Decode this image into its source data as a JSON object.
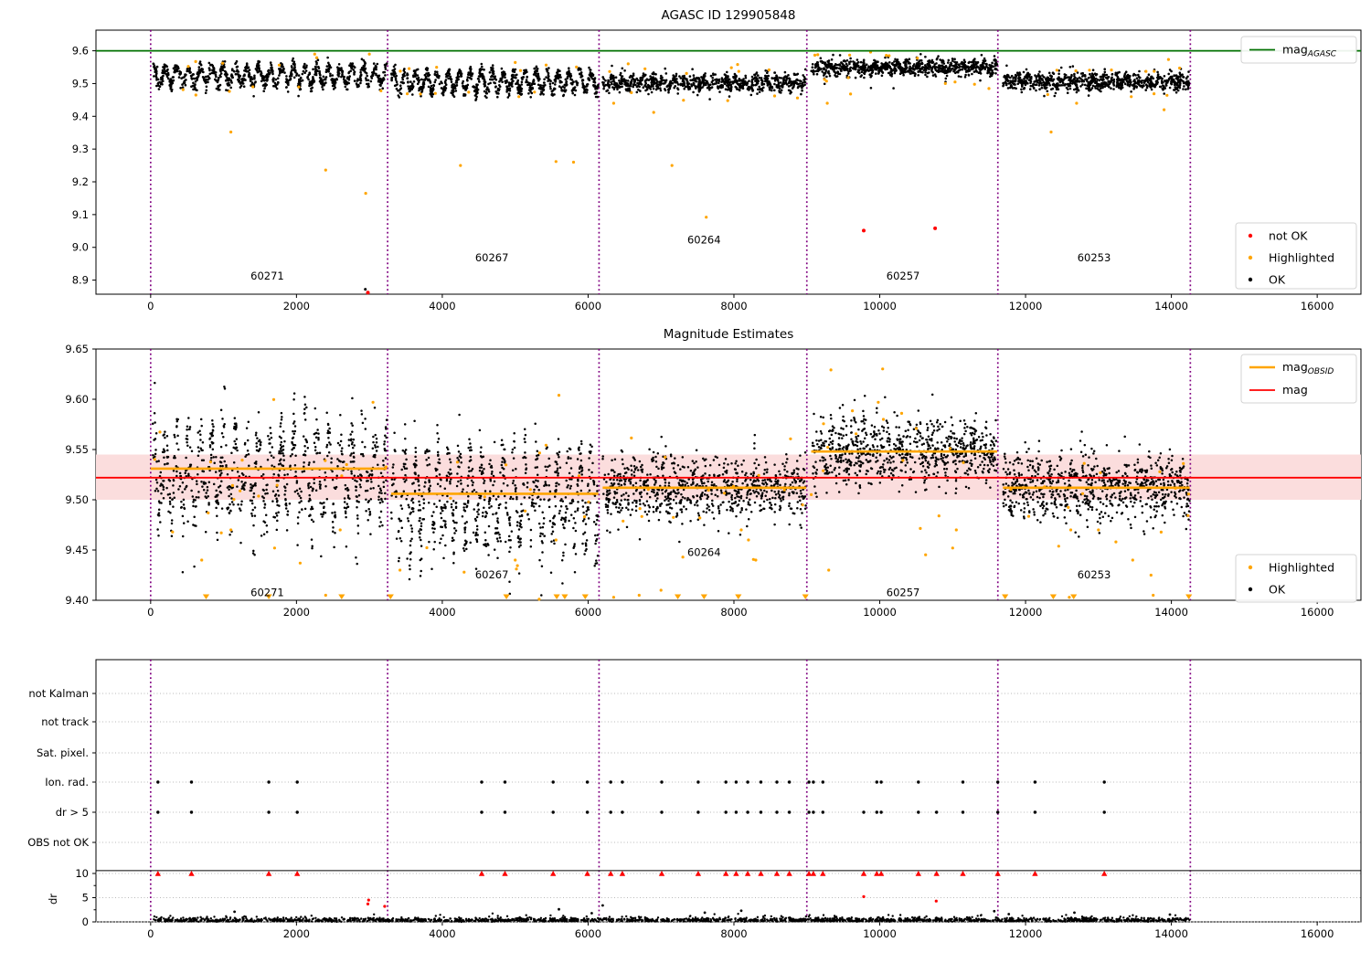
{
  "figure_title": "AGASC ID 129905848",
  "colors": {
    "ok": "#000000",
    "highlighted": "#ffa500",
    "not_ok": "#ff0000",
    "mag_agasc_line": "#007000",
    "mag_line": "#ff0000",
    "mag_band": "#fbdddd",
    "obsid_line": "#ffa500",
    "divider": "#800080",
    "grid": "#b8b8b8",
    "legend_border": "#d3d3d3"
  },
  "chart_data": [
    {
      "id": "panel1",
      "type": "scatter",
      "title": "AGASC ID 129905848",
      "xlim": [
        -750,
        16600
      ],
      "ylim": [
        8.857,
        9.663
      ],
      "xticks": [
        0,
        2000,
        4000,
        6000,
        8000,
        10000,
        12000,
        14000,
        16000
      ],
      "yticks": [
        8.9,
        9.0,
        9.1,
        9.2,
        9.3,
        9.4,
        9.5,
        9.6
      ],
      "ytick_labels": [
        "8.9",
        "9.0",
        "9.1",
        "9.2",
        "9.3",
        "9.4",
        "9.5",
        "9.6"
      ],
      "agasc_mag": 9.6,
      "dividers": [
        0,
        3250,
        6150,
        9000,
        11620,
        14260
      ],
      "legend_line": {
        "main": "mag",
        "sub": "AGASC"
      },
      "legend_markers": [
        {
          "label": "not OK",
          "color": "#ff0000"
        },
        {
          "label": "Highlighted",
          "color": "#ffa500"
        },
        {
          "label": "OK",
          "color": "#000000"
        }
      ],
      "obs_labels": [
        {
          "id": "60271",
          "x": 1600,
          "y": 8.902
        },
        {
          "id": "60267",
          "x": 4680,
          "y": 8.958
        },
        {
          "id": "60264",
          "x": 7590,
          "y": 9.012
        },
        {
          "id": "60257",
          "x": 10320,
          "y": 8.902
        },
        {
          "id": "60253",
          "x": 12940,
          "y": 8.958
        }
      ],
      "segments": [
        {
          "obsid": "60271",
          "x0": 30,
          "x1": 3240,
          "mean": 9.524,
          "amp": 0.026,
          "period": 160,
          "spread": 0.011,
          "n": 900
        },
        {
          "obsid": "60267",
          "x0": 3300,
          "x1": 6140,
          "mean": 9.506,
          "amp": 0.028,
          "period": 150,
          "spread": 0.011,
          "n": 850
        },
        {
          "obsid": "60264",
          "x0": 6200,
          "x1": 8990,
          "mean": 9.502,
          "amp": 0.01,
          "period": 140,
          "spread": 0.012,
          "n": 820
        },
        {
          "obsid": "60257",
          "x0": 9060,
          "x1": 11610,
          "mean": 9.549,
          "amp": 0.007,
          "period": 150,
          "spread": 0.012,
          "n": 800
        },
        {
          "obsid": "60253",
          "x0": 11690,
          "x1": 14250,
          "mean": 9.506,
          "amp": 0.007,
          "period": 150,
          "spread": 0.013,
          "n": 800
        }
      ],
      "orange_in_band_per_segment": 11,
      "orange_outliers": [
        [
          1100,
          9.352
        ],
        [
          2250,
          9.59
        ],
        [
          2400,
          9.236
        ],
        [
          2950,
          9.165
        ],
        [
          3000,
          9.59
        ],
        [
          3700,
          9.468
        ],
        [
          4250,
          9.25
        ],
        [
          5050,
          9.46
        ],
        [
          5560,
          9.262
        ],
        [
          5800,
          9.26
        ],
        [
          6350,
          9.44
        ],
        [
          6550,
          9.56
        ],
        [
          6900,
          9.412
        ],
        [
          7150,
          9.25
        ],
        [
          7620,
          9.092
        ],
        [
          8050,
          9.558
        ],
        [
          9150,
          9.588
        ],
        [
          9280,
          9.44
        ],
        [
          9600,
          9.468
        ],
        [
          10900,
          9.5
        ],
        [
          11300,
          9.498
        ],
        [
          12350,
          9.352
        ],
        [
          12700,
          9.44
        ],
        [
          13450,
          9.46
        ],
        [
          13900,
          9.42
        ]
      ],
      "red_points": [
        [
          9780,
          9.051
        ],
        [
          10760,
          9.058
        ],
        [
          2980,
          8.862
        ]
      ],
      "black_outliers": [
        [
          2944,
          8.872
        ]
      ]
    },
    {
      "id": "panel2",
      "type": "scatter",
      "title": "Magnitude Estimates",
      "xlim": [
        -750,
        16600
      ],
      "ylim": [
        9.4,
        9.65
      ],
      "xticks": [
        0,
        2000,
        4000,
        6000,
        8000,
        10000,
        12000,
        14000,
        16000
      ],
      "yticks": [
        9.4,
        9.45,
        9.5,
        9.55,
        9.6,
        9.65
      ],
      "ytick_labels": [
        "9.40",
        "9.45",
        "9.50",
        "9.55",
        "9.60",
        "9.65"
      ],
      "mag": 9.522,
      "mag_band": [
        9.5,
        9.545
      ],
      "dividers": [
        0,
        3250,
        6150,
        9000,
        11620,
        14260
      ],
      "legend_lines": [
        {
          "main": "mag",
          "sub": "OBSID",
          "color": "#ffa500"
        },
        {
          "main": "mag",
          "sub": "",
          "color": "#ff0000"
        }
      ],
      "legend_markers": [
        {
          "label": "Highlighted",
          "color": "#ffa500"
        },
        {
          "label": "OK",
          "color": "#000000"
        }
      ],
      "obs_labels": [
        {
          "id": "60271",
          "x": 1600,
          "y": 9.404
        },
        {
          "id": "60267",
          "x": 4680,
          "y": 9.422
        },
        {
          "id": "60264",
          "x": 7590,
          "y": 9.444
        },
        {
          "id": "60257",
          "x": 10320,
          "y": 9.404
        },
        {
          "id": "60253",
          "x": 12940,
          "y": 9.422
        }
      ],
      "obsid_lines": [
        {
          "x0": 0,
          "x1": 3240,
          "y": 9.531
        },
        {
          "x0": 3300,
          "x1": 6140,
          "y": 9.506
        },
        {
          "x0": 6200,
          "x1": 8990,
          "y": 9.512
        },
        {
          "x0": 9060,
          "x1": 11610,
          "y": 9.548
        },
        {
          "x0": 11690,
          "x1": 14250,
          "y": 9.512
        }
      ],
      "segments": [
        {
          "obsid": "60271",
          "x0": 30,
          "x1": 3240,
          "mean": 9.531,
          "amp": 0.034,
          "period": 160,
          "spread": 0.016,
          "tail": 0.022,
          "n": 900
        },
        {
          "obsid": "60267",
          "x0": 3300,
          "x1": 6140,
          "mean": 9.506,
          "amp": 0.036,
          "period": 150,
          "spread": 0.016,
          "tail": 0.022,
          "n": 850
        },
        {
          "obsid": "60264",
          "x0": 6200,
          "x1": 8990,
          "mean": 9.512,
          "amp": 0.008,
          "period": 140,
          "spread": 0.015,
          "tail": 0.0,
          "n": 820
        },
        {
          "obsid": "60257",
          "x0": 9060,
          "x1": 11610,
          "mean": 9.548,
          "amp": 0.009,
          "period": 150,
          "spread": 0.016,
          "tail": 0.0,
          "n": 800
        },
        {
          "obsid": "60253",
          "x0": 11690,
          "x1": 14250,
          "mean": 9.512,
          "amp": 0.008,
          "period": 150,
          "spread": 0.016,
          "tail": 0.0,
          "n": 800
        }
      ],
      "orange_in_band_per_segment": 16,
      "orange_outliers": [
        [
          300,
          9.468
        ],
        [
          700,
          9.44
        ],
        [
          1100,
          9.47
        ],
        [
          1700,
          9.452
        ],
        [
          2050,
          9.437
        ],
        [
          2400,
          9.405
        ],
        [
          2600,
          9.47
        ],
        [
          3050,
          9.597
        ],
        [
          3420,
          9.43
        ],
        [
          4300,
          9.428
        ],
        [
          5000,
          9.44
        ],
        [
          5560,
          9.46
        ],
        [
          5600,
          9.604
        ],
        [
          6350,
          9.403
        ],
        [
          6700,
          9.405
        ],
        [
          7000,
          9.41
        ],
        [
          7300,
          9.443
        ],
        [
          8100,
          9.47
        ],
        [
          8200,
          9.46
        ],
        [
          8300,
          9.44
        ],
        [
          9300,
          9.43
        ],
        [
          9980,
          9.597
        ],
        [
          10050,
          9.58
        ],
        [
          10300,
          9.586
        ],
        [
          11000,
          9.452
        ],
        [
          11050,
          9.47
        ],
        [
          12600,
          9.403
        ],
        [
          12620,
          9.47
        ],
        [
          13000,
          9.47
        ],
        [
          13470,
          9.44
        ],
        [
          13720,
          9.425
        ],
        [
          13750,
          9.405
        ]
      ],
      "clipped_orange_x": [
        760,
        1620,
        2620,
        3290,
        4880,
        5570,
        5680,
        5960,
        7230,
        7590,
        8060,
        8980,
        11720,
        12380,
        12660,
        14240
      ]
    },
    {
      "id": "panel3",
      "type": "scatter",
      "title": "",
      "xlim": [
        -750,
        16600
      ],
      "xticks": [
        0,
        2000,
        4000,
        6000,
        8000,
        10000,
        12000,
        14000,
        16000
      ],
      "flag_rows": [
        "not Kalman",
        "not track",
        "Sat. pixel.",
        "Ion. rad.",
        "dr > 5",
        "OBS not OK"
      ],
      "dr_axis_label": "dr",
      "dr_ticks": [
        {
          "v": 10,
          "label": "10"
        },
        {
          "v": 5,
          "label": "5"
        },
        {
          "v": 0,
          "label": "0"
        }
      ],
      "dr_minor_ticks": [
        2.5,
        7.5
      ],
      "dr_threshold": 10.6,
      "dividers": [
        0,
        3250,
        6150,
        9000,
        11620,
        14260
      ],
      "ion_rad_x": [
        100,
        560,
        1620,
        2010,
        4540,
        4860,
        5520,
        5990,
        6310,
        6470,
        7010,
        7510,
        7890,
        8030,
        8190,
        8370,
        8590,
        8760,
        9030,
        9090,
        9220,
        9960,
        10020,
        10530,
        11140,
        11620,
        12130,
        13080
      ],
      "dr_gt5_x": [
        100,
        560,
        1620,
        2010,
        4540,
        4860,
        5520,
        5990,
        6310,
        6470,
        7010,
        7510,
        7890,
        8030,
        8190,
        8370,
        8590,
        8760,
        9030,
        9090,
        9220,
        9780,
        9960,
        10020,
        10530,
        10780,
        11140,
        11620,
        12130,
        13080
      ],
      "dr10_clipped_red_x": [
        100,
        560,
        1620,
        2010,
        4540,
        4860,
        5520,
        5990,
        6310,
        6470,
        7010,
        7510,
        7890,
        8030,
        8190,
        8370,
        8590,
        8760,
        9030,
        9090,
        9220,
        9780,
        9960,
        10020,
        10530,
        10780,
        11140,
        11620,
        12130,
        13080
      ],
      "dr_red_points": [
        [
          2990,
          4.5
        ],
        [
          2980,
          3.7
        ],
        [
          3210,
          3.2
        ],
        [
          9780,
          5.2
        ],
        [
          10775,
          4.3
        ]
      ],
      "dr_black_points": [
        [
          1150,
          2.1
        ],
        [
          5600,
          2.6
        ],
        [
          6050,
          1.8
        ],
        [
          6200,
          3.4
        ],
        [
          7600,
          1.9
        ],
        [
          8100,
          2.3
        ],
        [
          11570,
          2.2
        ],
        [
          11770,
          1.6
        ],
        [
          12670,
          1.9
        ],
        [
          13980,
          1.5
        ]
      ],
      "dr_band": {
        "x0": 30,
        "x1": 14250,
        "n": 2000,
        "scale": 0.33,
        "uniform": 0.3
      }
    }
  ]
}
